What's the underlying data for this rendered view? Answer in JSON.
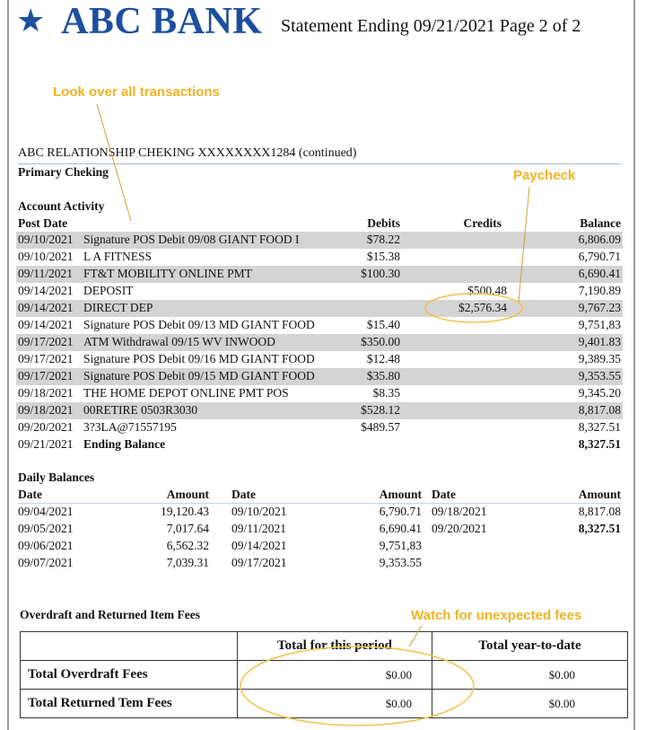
{
  "header": {
    "logo_icon": "star-icon",
    "bank_name": "ABC BANK",
    "statement_info": "Statement Ending 09/21/2021 Page 2 of 2",
    "brand_color": "#1d4f9e"
  },
  "annotations": {
    "look": "Look over all transactions",
    "paycheck": "Paycheck",
    "fees": "Watch for unexpected fees",
    "color": "#f0b323"
  },
  "account": {
    "title": "ABC RELATIONSHIP CHEKING XXXXXXXX1284 (continued)",
    "subtitle": "Primary Cheking",
    "section": "Account Activity"
  },
  "activity": {
    "headers": {
      "post_date": "Post Date",
      "debits": "Debits",
      "credits": "Credits",
      "balance": "Balance"
    },
    "rows": [
      {
        "date": "09/10/2021",
        "desc": "Signature POS Debit 09/08 GIANT FOOD I",
        "debit": "$78.22",
        "credit": "",
        "balance": "6,806.09"
      },
      {
        "date": "09/10/2021",
        "desc": "L A FITNESS",
        "debit": "$15.38",
        "credit": "",
        "balance": "6,790.71"
      },
      {
        "date": "09/11/2021",
        "desc": "FT&T MOBILITY ONLINE PMT",
        "debit": "$100.30",
        "credit": "",
        "balance": "6,690.41"
      },
      {
        "date": "09/14/2021",
        "desc": "DEPOSIT",
        "debit": "",
        "credit": "$500.48",
        "balance": "7,190.89"
      },
      {
        "date": "09/14/2021",
        "desc": "DIRECT DEP",
        "debit": "",
        "credit": "$2,576.34",
        "balance": "9,767.23"
      },
      {
        "date": "09/14/2021",
        "desc": "Signature POS Debit 09/13 MD GIANT FOOD",
        "debit": "$15.40",
        "credit": "",
        "balance": "9,751,83"
      },
      {
        "date": "09/17/2021",
        "desc": "ATM Withdrawal  09/15 WV INWOOD",
        "debit": "$350.00",
        "credit": "",
        "balance": "9,401.83"
      },
      {
        "date": "09/17/2021",
        "desc": "Signature POS Debit 09/16 MD GIANT FOOD",
        "debit": "$12.48",
        "credit": "",
        "balance": "9,389.35"
      },
      {
        "date": "09/17/2021",
        "desc": "Signature POS Debit 09/15 MD GIANT FOOD",
        "debit": "$35.80",
        "credit": "",
        "balance": "9,353.55"
      },
      {
        "date": "09/18/2021",
        "desc": "THE HOME DEPOT ONLINE PMT POS",
        "debit": "$8.35",
        "credit": "",
        "balance": "9,345.20"
      },
      {
        "date": "09/18/2021",
        "desc": "00RETIRE 0503R3030",
        "debit": "$528.12",
        "credit": "",
        "balance": "8,817.08"
      },
      {
        "date": "09/20/2021",
        "desc": "3?3LA@71557195",
        "debit": "$489.57",
        "credit": "",
        "balance": "8,327.51"
      }
    ],
    "ending": {
      "date": "09/21/2021",
      "label": "Ending Balance",
      "balance": "8,327.51"
    }
  },
  "daily": {
    "title": "Daily Balances",
    "date_label": "Date",
    "amount_label": "Amount",
    "rows": [
      [
        {
          "date": "09/04/2021",
          "amount": "19,120.43"
        },
        {
          "date": "09/10/2021",
          "amount": "6,790.71"
        },
        {
          "date": "09/18/2021",
          "amount": "8,817.08"
        }
      ],
      [
        {
          "date": "09/05/2021",
          "amount": "7,017.64"
        },
        {
          "date": "09/11/2021",
          "amount": "6,690.41"
        },
        {
          "date": "09/20/2021",
          "amount": "8,327.51"
        }
      ],
      [
        {
          "date": "09/06/2021",
          "amount": "6,562.32"
        },
        {
          "date": "09/14/2021",
          "amount": "9,751,83"
        }
      ],
      [
        {
          "date": "09/07/2021",
          "amount": "7,039.31"
        },
        {
          "date": "09/17/2021",
          "amount": "9,353.55"
        }
      ]
    ]
  },
  "fees": {
    "title": "Overdraft and Returned Item Fees",
    "col_period": "Total for this period",
    "col_ytd": "Total year-to-date",
    "rows": [
      {
        "label": "Total Overdraft Fees",
        "period": "$0.00",
        "ytd": "$0.00"
      },
      {
        "label": "Total Returned Tem Fees",
        "period": "$0.00",
        "ytd": "$0.00"
      }
    ]
  }
}
